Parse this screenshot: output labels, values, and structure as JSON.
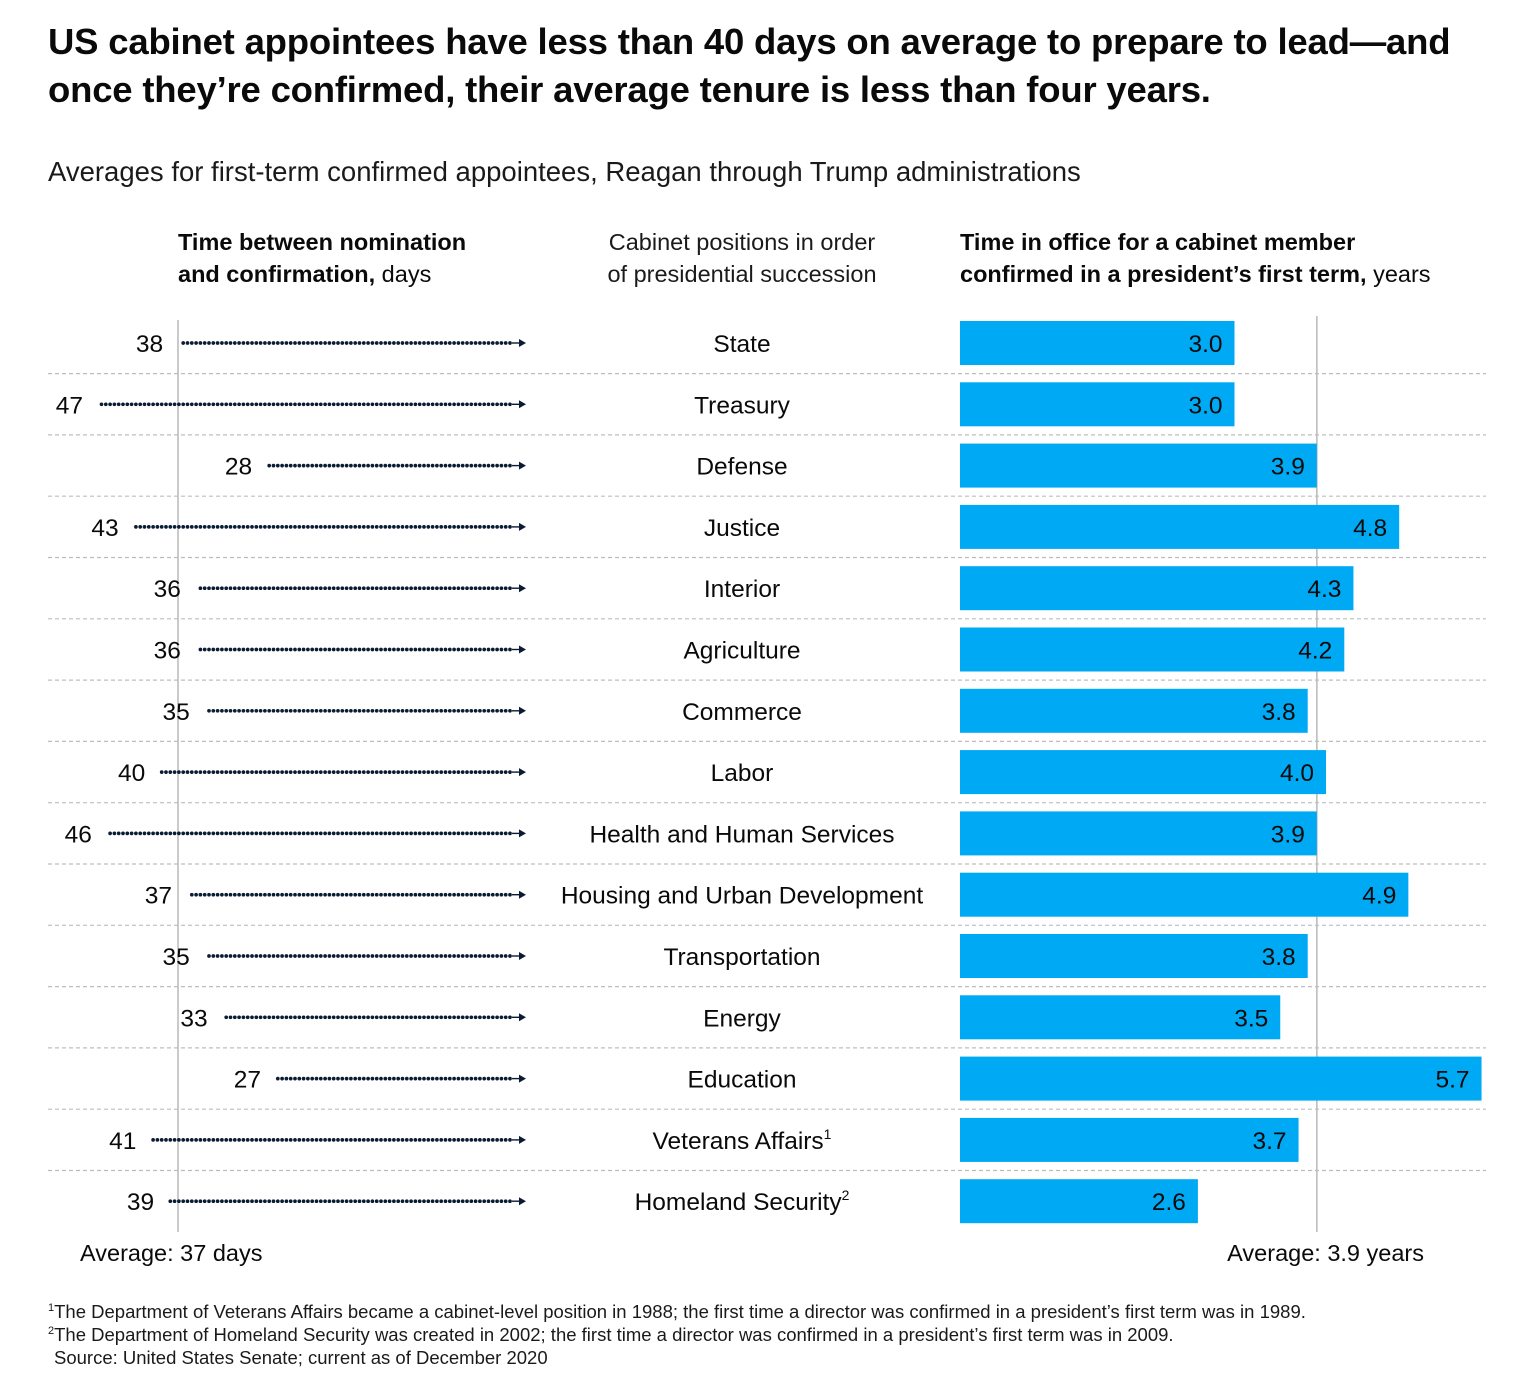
{
  "title": "US cabinet appointees have less than 40 days on average to prepare to lead—and once they’re confirmed, their average tenure is less than four years.",
  "subtitle": "Averages for first-term confirmed appointees, Reagan through Trump administrations",
  "headers": {
    "left_bold_1": "Time between nomination",
    "left_bold_2": "and confirmation,",
    "left_unit": " days",
    "middle_1": "Cabinet positions in order",
    "middle_2": "of presidential succession",
    "right_bold_1": "Time in office for a cabinet member",
    "right_bold_2": "confirmed in a president’s first term,",
    "right_unit": " years"
  },
  "footnotes": {
    "n1_mark": "1",
    "n1_text": "The Department of Veterans Affairs became a cabinet-level position in 1988; the first time a director was confirmed in a president’s first term was in 1989.",
    "n2_mark": "2",
    "n2_text": "The Department of Homeland Security was created in 2002; the first time a director was confirmed in a president’s first term was in 2009.",
    "source": "Source: United States Senate; current as of December 2020"
  },
  "colors": {
    "bar": "#00a9f4",
    "dots": "#0b1b33",
    "gridline": "#bdbdbd",
    "axis": "#bdbdbd"
  },
  "chart_data": [
    {
      "type": "dot-arrow",
      "unit": "days",
      "categories": [
        "State",
        "Treasury",
        "Defense",
        "Justice",
        "Interior",
        "Agriculture",
        "Commerce",
        "Labor",
        "Health and Human Services",
        "Housing and Urban Development",
        "Transportation",
        "Energy",
        "Education",
        "Veterans Affairs",
        "Homeland Security"
      ],
      "category_superscripts": [
        "",
        "",
        "",
        "",
        "",
        "",
        "",
        "",
        "",
        "",
        "",
        "",
        "",
        "1",
        "2"
      ],
      "values": [
        38,
        47,
        28,
        43,
        36,
        36,
        35,
        40,
        46,
        37,
        35,
        33,
        27,
        41,
        39
      ],
      "average": 37,
      "average_label": "Average: 37 days"
    },
    {
      "type": "bar",
      "orientation": "horizontal",
      "unit": "years",
      "categories": [
        "State",
        "Treasury",
        "Defense",
        "Justice",
        "Interior",
        "Agriculture",
        "Commerce",
        "Labor",
        "Health and Human Services",
        "Housing and Urban Development",
        "Transportation",
        "Energy",
        "Education",
        "Veterans Affairs",
        "Homeland Security"
      ],
      "values": [
        3.0,
        3.0,
        3.9,
        4.8,
        4.3,
        4.2,
        3.8,
        4.0,
        3.9,
        4.9,
        3.8,
        3.5,
        5.7,
        3.7,
        2.6
      ],
      "value_labels": [
        "3.0",
        "3.0",
        "3.9",
        "4.8",
        "4.3",
        "4.2",
        "3.8",
        "4.0",
        "3.9",
        "4.9",
        "3.8",
        "3.5",
        "5.7",
        "3.7",
        "2.6"
      ],
      "average": 3.9,
      "average_label": "Average: 3.9 years"
    }
  ]
}
